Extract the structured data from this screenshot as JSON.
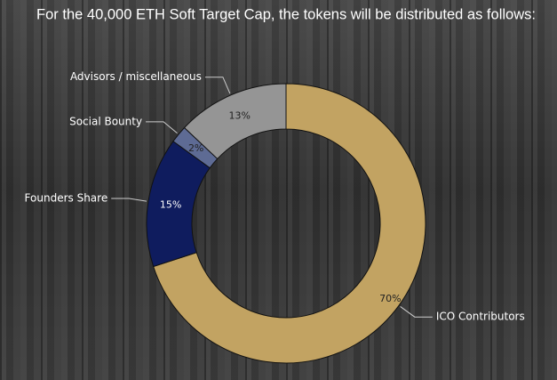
{
  "chart_data": {
    "type": "donut",
    "title": "For the 40,000 ETH Soft Target Cap, the tokens will be distributed as follows:",
    "categories": [
      "ICO Contributors",
      "Founders Share",
      "Social Bounty",
      "Advisors / miscellaneous"
    ],
    "values": [
      70,
      15,
      2,
      13
    ],
    "value_labels": [
      "70%",
      "15%",
      "2%",
      "13%"
    ],
    "colors": [
      "#c2a362",
      "#0f1c5e",
      "#5e6b94",
      "#959595"
    ]
  }
}
